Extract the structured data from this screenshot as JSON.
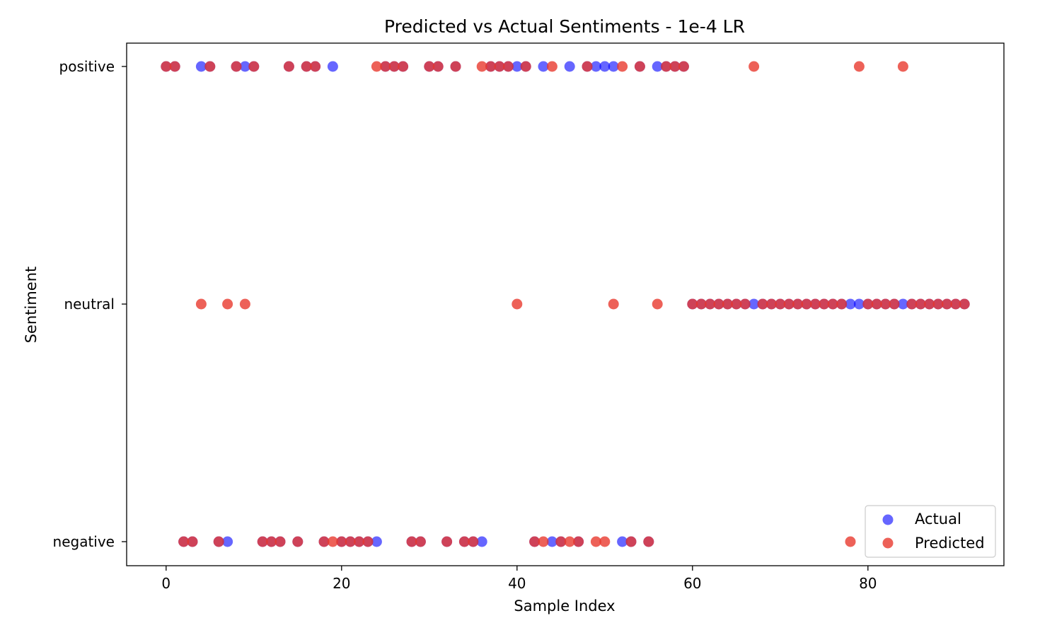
{
  "chart_data": {
    "type": "scatter",
    "title": "Predicted vs Actual Sentiments - 1e-4 LR",
    "xlabel": "Sample Index",
    "ylabel": "Sentiment",
    "xlim": [
      -4.5,
      95.5
    ],
    "xticks": [
      0,
      20,
      40,
      60,
      80
    ],
    "categories": [
      "negative",
      "neutral",
      "positive"
    ],
    "legend_position": "bottom-right",
    "grid": false,
    "series": [
      {
        "name": "Actual",
        "color": "#0000ff",
        "opacity": 0.6,
        "values": [
          [
            "positive",
            [
              0,
              1,
              4,
              5,
              8,
              9,
              10,
              14,
              16,
              17,
              19,
              25,
              26,
              27,
              30,
              31,
              33,
              37,
              38,
              39,
              40,
              41,
              43,
              46,
              48,
              49,
              50,
              51,
              54,
              56,
              57,
              58,
              59
            ]
          ],
          [
            "neutral",
            [
              60,
              61,
              62,
              63,
              64,
              65,
              66,
              67,
              68,
              69,
              70,
              71,
              72,
              73,
              74,
              75,
              76,
              77,
              78,
              79,
              80,
              81,
              82,
              83,
              84,
              85,
              86,
              87,
              88,
              89,
              90,
              91
            ]
          ],
          [
            "negative",
            [
              2,
              3,
              6,
              7,
              11,
              12,
              13,
              15,
              18,
              20,
              21,
              22,
              23,
              24,
              28,
              29,
              32,
              34,
              35,
              36,
              42,
              44,
              45,
              47,
              52,
              53,
              55
            ]
          ]
        ]
      },
      {
        "name": "Predicted",
        "color": "#e8392e",
        "opacity": 0.8,
        "values": [
          [
            "positive",
            [
              0,
              1,
              5,
              8,
              10,
              14,
              16,
              17,
              24,
              25,
              26,
              27,
              30,
              31,
              33,
              36,
              37,
              38,
              39,
              41,
              44,
              48,
              52,
              54,
              57,
              58,
              59,
              67,
              79,
              84
            ]
          ],
          [
            "neutral",
            [
              4,
              7,
              9,
              40,
              51,
              56,
              60,
              61,
              62,
              63,
              64,
              65,
              66,
              68,
              69,
              70,
              71,
              72,
              73,
              74,
              75,
              76,
              77,
              80,
              81,
              82,
              83,
              85,
              86,
              87,
              88,
              89,
              90,
              91
            ]
          ],
          [
            "negative",
            [
              2,
              3,
              6,
              11,
              12,
              13,
              15,
              18,
              19,
              20,
              21,
              22,
              23,
              28,
              29,
              32,
              34,
              35,
              42,
              43,
              45,
              46,
              47,
              49,
              50,
              53,
              55,
              78
            ]
          ]
        ]
      }
    ]
  }
}
